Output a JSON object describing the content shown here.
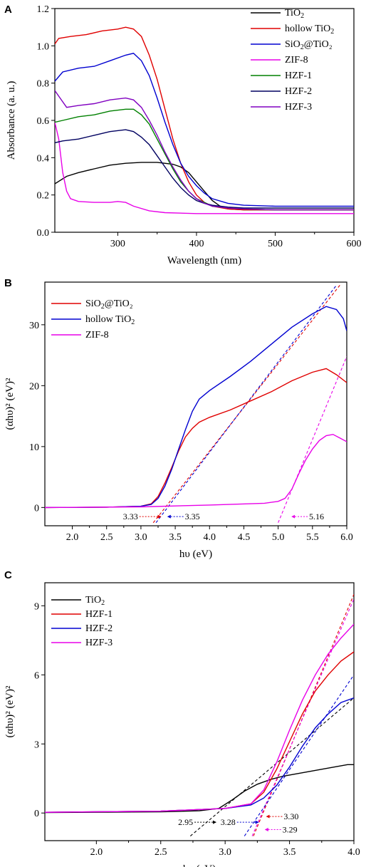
{
  "chart_data": [
    {
      "panel": "A",
      "type": "line",
      "xlabel": "Wavelength (nm)",
      "ylabel": "Absorbance (a. u.)",
      "xlim": [
        220,
        600
      ],
      "ylim": [
        0.0,
        1.2
      ],
      "xticks": [
        300,
        400,
        500,
        600
      ],
      "xtick_labels": [
        "300",
        "400",
        "500",
        "600"
      ],
      "yticks": [
        0.0,
        0.2,
        0.4,
        0.6,
        0.8,
        1.0,
        1.2
      ],
      "ytick_labels": [
        "0.0",
        "0.2",
        "0.4",
        "0.6",
        "0.8",
        "1.0",
        "1.2"
      ],
      "legend": "top-right",
      "series": [
        {
          "name": "TiO",
          "sub": "2",
          "after": "",
          "color": "#000000",
          "x": [
            220,
            235,
            250,
            270,
            290,
            310,
            330,
            350,
            370,
            380,
            390,
            400,
            410,
            420,
            430,
            440,
            460,
            480,
            500,
            550,
            600
          ],
          "y": [
            0.26,
            0.3,
            0.32,
            0.34,
            0.36,
            0.37,
            0.375,
            0.375,
            0.365,
            0.35,
            0.32,
            0.27,
            0.22,
            0.17,
            0.14,
            0.125,
            0.12,
            0.12,
            0.12,
            0.12,
            0.12
          ]
        },
        {
          "name": "hollow TiO",
          "sub": "2",
          "after": "",
          "color": "#e00000",
          "x": [
            220,
            225,
            240,
            260,
            280,
            300,
            310,
            320,
            330,
            340,
            350,
            360,
            370,
            380,
            390,
            400,
            410,
            420,
            440,
            460,
            500,
            550,
            600
          ],
          "y": [
            1.01,
            1.04,
            1.05,
            1.06,
            1.08,
            1.09,
            1.1,
            1.09,
            1.05,
            0.95,
            0.82,
            0.66,
            0.5,
            0.37,
            0.27,
            0.2,
            0.16,
            0.14,
            0.125,
            0.12,
            0.12,
            0.12,
            0.12
          ]
        },
        {
          "name": "SiO",
          "sub": "2",
          "after": "@TiO₂",
          "color": "#0000d0",
          "x": [
            220,
            230,
            250,
            270,
            290,
            310,
            320,
            330,
            340,
            350,
            360,
            370,
            380,
            390,
            400,
            410,
            420,
            440,
            460,
            500,
            550,
            600
          ],
          "y": [
            0.81,
            0.86,
            0.88,
            0.89,
            0.92,
            0.95,
            0.96,
            0.92,
            0.84,
            0.72,
            0.59,
            0.47,
            0.37,
            0.3,
            0.25,
            0.21,
            0.18,
            0.155,
            0.145,
            0.14,
            0.14,
            0.14
          ]
        },
        {
          "name": "ZIF-8",
          "sub": "",
          "after": "",
          "color": "#e800e8",
          "x": [
            220,
            225,
            230,
            235,
            240,
            250,
            270,
            290,
            300,
            310,
            320,
            340,
            360,
            400,
            450,
            500,
            550,
            600
          ],
          "y": [
            0.59,
            0.5,
            0.32,
            0.22,
            0.18,
            0.165,
            0.16,
            0.16,
            0.165,
            0.16,
            0.14,
            0.115,
            0.105,
            0.1,
            0.1,
            0.1,
            0.1,
            0.1
          ]
        },
        {
          "name": "HZF-1",
          "sub": "",
          "after": "",
          "color": "#008000",
          "x": [
            220,
            230,
            250,
            270,
            290,
            310,
            320,
            330,
            340,
            350,
            360,
            370,
            380,
            390,
            400,
            410,
            420,
            440,
            460,
            500,
            550,
            600
          ],
          "y": [
            0.59,
            0.6,
            0.62,
            0.63,
            0.65,
            0.66,
            0.66,
            0.63,
            0.58,
            0.5,
            0.42,
            0.34,
            0.27,
            0.22,
            0.18,
            0.16,
            0.14,
            0.13,
            0.125,
            0.12,
            0.12,
            0.12
          ]
        },
        {
          "name": "HZF-2",
          "sub": "",
          "after": "",
          "color": "#000060",
          "x": [
            220,
            230,
            250,
            270,
            290,
            310,
            320,
            330,
            340,
            350,
            360,
            370,
            380,
            390,
            400,
            410,
            420,
            440,
            460,
            500,
            550,
            600
          ],
          "y": [
            0.48,
            0.49,
            0.5,
            0.52,
            0.54,
            0.55,
            0.54,
            0.51,
            0.47,
            0.41,
            0.35,
            0.29,
            0.24,
            0.2,
            0.17,
            0.155,
            0.145,
            0.135,
            0.13,
            0.13,
            0.13,
            0.13
          ]
        },
        {
          "name": "HZF-3",
          "sub": "",
          "after": "",
          "color": "#8000c0",
          "x": [
            220,
            225,
            235,
            250,
            270,
            290,
            310,
            320,
            330,
            340,
            350,
            360,
            370,
            380,
            390,
            400,
            410,
            420,
            440,
            460,
            500,
            550,
            600
          ],
          "y": [
            0.76,
            0.73,
            0.67,
            0.68,
            0.69,
            0.71,
            0.72,
            0.71,
            0.67,
            0.6,
            0.52,
            0.43,
            0.35,
            0.28,
            0.22,
            0.18,
            0.155,
            0.14,
            0.13,
            0.125,
            0.12,
            0.12,
            0.12
          ]
        }
      ]
    },
    {
      "panel": "B",
      "type": "line",
      "xlabel": "hυ (eV)",
      "ylabel": "(αhυ)² (eV)²",
      "xlim": [
        1.6,
        6.0
      ],
      "ylim": [
        -3,
        37
      ],
      "xticks": [
        2.0,
        2.5,
        3.0,
        3.5,
        4.0,
        4.5,
        5.0,
        5.5,
        6.0
      ],
      "xtick_labels": [
        "2.0",
        "2.5",
        "3.0",
        "3.5",
        "4.0",
        "4.5",
        "5.0",
        "5.5",
        "6.0"
      ],
      "yticks": [
        0,
        10,
        20,
        30
      ],
      "ytick_labels": [
        "0",
        "10",
        "20",
        "30"
      ],
      "legend": "top-left",
      "series": [
        {
          "name": "SiO",
          "sub": "2",
          "after": "@TiO₂",
          "color": "#e00000",
          "x": [
            1.6,
            2.5,
            3.0,
            3.15,
            3.25,
            3.35,
            3.45,
            3.55,
            3.65,
            3.75,
            3.85,
            4.0,
            4.3,
            4.6,
            4.9,
            5.2,
            5.5,
            5.7,
            5.85,
            6.0
          ],
          "y": [
            0,
            0.05,
            0.2,
            0.6,
            1.8,
            4.0,
            6.6,
            9.3,
            11.6,
            13.0,
            14.0,
            14.8,
            16.0,
            17.5,
            19.0,
            20.8,
            22.2,
            22.8,
            21.8,
            20.5
          ]
        },
        {
          "name": "hollow TiO",
          "sub": "2",
          "after": "",
          "color": "#0000d0",
          "x": [
            1.6,
            2.5,
            3.0,
            3.15,
            3.25,
            3.35,
            3.45,
            3.55,
            3.65,
            3.75,
            3.85,
            4.0,
            4.3,
            4.6,
            4.9,
            5.2,
            5.5,
            5.7,
            5.85,
            5.95,
            6.0
          ],
          "y": [
            0,
            0.05,
            0.2,
            0.5,
            1.5,
            3.5,
            6.3,
            9.6,
            12.8,
            15.8,
            17.8,
            19.2,
            21.5,
            24.0,
            26.8,
            29.6,
            31.8,
            33.0,
            32.5,
            31.0,
            29.0
          ]
        },
        {
          "name": "ZIF-8",
          "sub": "",
          "after": "",
          "color": "#e800e8",
          "x": [
            1.6,
            3.0,
            4.0,
            4.8,
            5.0,
            5.1,
            5.2,
            5.3,
            5.4,
            5.5,
            5.6,
            5.7,
            5.8,
            5.9,
            6.0
          ],
          "y": [
            0,
            0.1,
            0.4,
            0.7,
            1.0,
            1.5,
            3.0,
            5.5,
            7.8,
            9.6,
            11.0,
            11.8,
            12.0,
            11.4,
            10.8
          ]
        }
      ],
      "fit_lines": [
        {
          "color": "#e00000",
          "x": [
            3.18,
            5.9
          ],
          "y": [
            -2.5,
            36.5
          ]
        },
        {
          "color": "#0000d0",
          "x": [
            3.22,
            5.85
          ],
          "y": [
            -2.5,
            36.5
          ]
        },
        {
          "color": "#e800e8",
          "x": [
            5.0,
            6.0
          ],
          "y": [
            -2.5,
            24.8
          ]
        }
      ],
      "annotations": [
        {
          "text": "3.33",
          "x": 3.33,
          "y": -1.5,
          "dir": "left",
          "color": "#e00000"
        },
        {
          "text": "3.35",
          "x": 3.35,
          "y": -1.5,
          "dir": "right",
          "color": "#0000d0"
        },
        {
          "text": "5.16",
          "x": 5.16,
          "y": -1.5,
          "dir": "right",
          "color": "#e800e8"
        }
      ]
    },
    {
      "panel": "C",
      "type": "line",
      "xlabel": "hυ (eV)",
      "ylabel": "(αhυ)² (eV)²",
      "xlim": [
        1.6,
        4.0
      ],
      "ylim": [
        -1.2,
        10
      ],
      "xticks": [
        2.0,
        2.5,
        3.0,
        3.5,
        4.0
      ],
      "xtick_labels": [
        "2.0",
        "2.5",
        "3.0",
        "3.5",
        "4.0"
      ],
      "yticks": [
        0,
        3,
        6,
        9
      ],
      "ytick_labels": [
        "0",
        "3",
        "6",
        "9"
      ],
      "legend": "top-left",
      "series": [
        {
          "name": "TiO",
          "sub": "2",
          "after": "",
          "color": "#000000",
          "x": [
            1.6,
            2.5,
            2.8,
            2.95,
            3.05,
            3.15,
            3.25,
            3.35,
            3.45,
            3.6,
            3.8,
            3.95,
            4.0
          ],
          "y": [
            0.02,
            0.05,
            0.1,
            0.2,
            0.55,
            0.95,
            1.25,
            1.45,
            1.6,
            1.75,
            1.95,
            2.1,
            2.1
          ]
        },
        {
          "name": "HZF-1",
          "sub": "",
          "after": "",
          "color": "#e00000",
          "x": [
            1.6,
            2.5,
            3.0,
            3.2,
            3.3,
            3.4,
            3.5,
            3.6,
            3.7,
            3.8,
            3.9,
            4.0
          ],
          "y": [
            0.03,
            0.08,
            0.2,
            0.4,
            0.9,
            1.9,
            3.1,
            4.3,
            5.3,
            6.0,
            6.6,
            7.0
          ]
        },
        {
          "name": "HZF-2",
          "sub": "",
          "after": "",
          "color": "#0000d0",
          "x": [
            1.6,
            2.5,
            3.0,
            3.2,
            3.3,
            3.4,
            3.5,
            3.6,
            3.7,
            3.8,
            3.9,
            4.0
          ],
          "y": [
            0.03,
            0.08,
            0.2,
            0.35,
            0.65,
            1.2,
            2.0,
            2.9,
            3.7,
            4.3,
            4.8,
            5.0
          ]
        },
        {
          "name": "HZF-3",
          "sub": "",
          "after": "",
          "color": "#e800e8",
          "x": [
            1.6,
            2.5,
            3.0,
            3.2,
            3.3,
            3.4,
            3.5,
            3.6,
            3.7,
            3.8,
            3.9,
            4.0
          ],
          "y": [
            0.03,
            0.08,
            0.2,
            0.4,
            1.0,
            2.2,
            3.6,
            4.9,
            6.0,
            6.9,
            7.6,
            8.2
          ]
        }
      ],
      "fit_lines": [
        {
          "color": "#000000",
          "x": [
            2.73,
            4.0
          ],
          "y": [
            -1.0,
            5.0
          ]
        },
        {
          "color": "#e00000",
          "x": [
            3.22,
            4.0
          ],
          "y": [
            -1.0,
            9.5
          ]
        },
        {
          "color": "#e800e8",
          "x": [
            3.21,
            4.0
          ],
          "y": [
            -1.0,
            9.3
          ]
        },
        {
          "color": "#0000d0",
          "x": [
            3.15,
            4.0
          ],
          "y": [
            -1.0,
            6.0
          ]
        }
      ],
      "annotations": [
        {
          "text": "2.95",
          "x": 2.95,
          "y": -0.4,
          "dir": "left",
          "color": "#000000"
        },
        {
          "text": "3.28",
          "x": 3.28,
          "y": -0.4,
          "dir": "left",
          "color": "#0000d0"
        },
        {
          "text": "3.30",
          "x": 3.3,
          "y": -0.15,
          "dir": "right",
          "color": "#e00000"
        },
        {
          "text": "3.29",
          "x": 3.29,
          "y": -0.72,
          "dir": "right",
          "color": "#e800e8"
        }
      ]
    }
  ]
}
